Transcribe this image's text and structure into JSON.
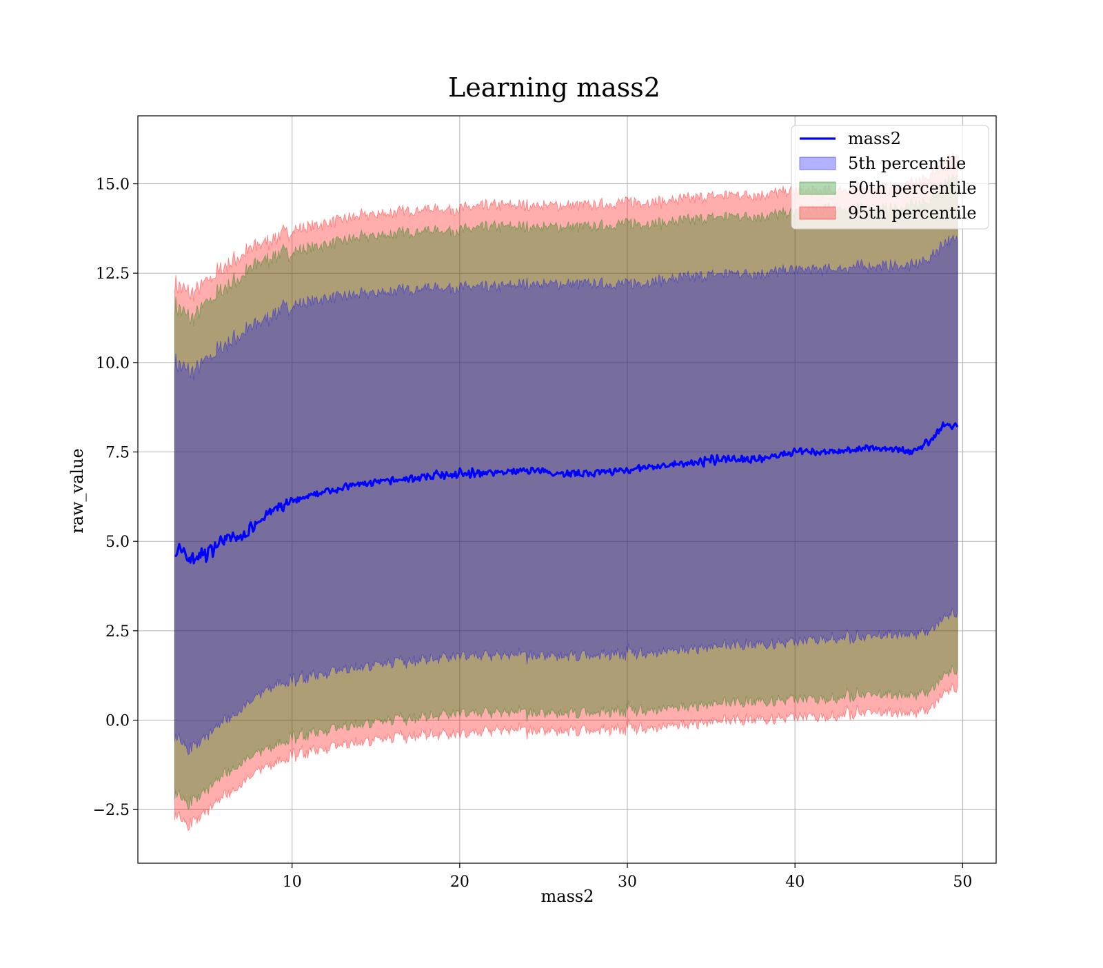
{
  "chart_data": {
    "type": "area",
    "title": "Learning mass2",
    "xlabel": "mass2",
    "ylabel": "raw_value",
    "xlim": [
      0.8,
      52
    ],
    "ylim": [
      -4,
      16.9
    ],
    "xticks": [
      10,
      20,
      30,
      40,
      50
    ],
    "yticks": [
      -2.5,
      0.0,
      2.5,
      5.0,
      7.5,
      10.0,
      12.5,
      15.0
    ],
    "ytick_labels": [
      "−2.5",
      "0.0",
      "2.5",
      "5.0",
      "7.5",
      "10.0",
      "12.5",
      "15.0"
    ],
    "grid": true,
    "legend_position": "top-right",
    "x": [
      3.0,
      4.0,
      5.0,
      6.0,
      7.0,
      8.0,
      9.0,
      10.0,
      12.0,
      14.0,
      16.0,
      18.0,
      20.0,
      22.0,
      24.0,
      26.0,
      28.0,
      30.0,
      32.0,
      34.0,
      36.0,
      38.0,
      40.0,
      42.0,
      44.0,
      46.0,
      47.0,
      48.0,
      49.0,
      49.7
    ],
    "series": [
      {
        "name": "mass2",
        "kind": "line",
        "color": "#0000ff",
        "values": [
          4.8,
          4.5,
          4.7,
          5.1,
          5.1,
          5.6,
          5.9,
          6.1,
          6.4,
          6.6,
          6.7,
          6.8,
          6.9,
          6.9,
          7.0,
          6.9,
          6.9,
          7.0,
          7.1,
          7.2,
          7.3,
          7.3,
          7.5,
          7.5,
          7.6,
          7.6,
          7.5,
          7.8,
          8.3,
          8.2
        ]
      },
      {
        "name": "5th percentile",
        "kind": "band",
        "color": "#0000ff",
        "lower": [
          -0.4,
          -0.8,
          -0.4,
          0.0,
          0.3,
          0.7,
          1.0,
          1.1,
          1.3,
          1.5,
          1.6,
          1.7,
          1.8,
          1.8,
          1.8,
          1.8,
          1.8,
          1.9,
          1.9,
          2.0,
          2.1,
          2.1,
          2.2,
          2.3,
          2.3,
          2.4,
          2.4,
          2.5,
          2.9,
          3.0
        ],
        "upper": [
          10.0,
          9.7,
          10.1,
          10.5,
          10.8,
          11.1,
          11.4,
          11.6,
          11.8,
          11.9,
          12.0,
          12.1,
          12.1,
          12.1,
          12.2,
          12.2,
          12.2,
          12.2,
          12.3,
          12.4,
          12.5,
          12.5,
          12.6,
          12.6,
          12.7,
          12.7,
          12.7,
          12.9,
          13.4,
          13.4
        ]
      },
      {
        "name": "50th percentile",
        "kind": "band",
        "color": "#008000",
        "lower": [
          -2.0,
          -2.3,
          -1.9,
          -1.5,
          -1.2,
          -0.9,
          -0.7,
          -0.5,
          -0.3,
          -0.1,
          0.0,
          0.1,
          0.2,
          0.2,
          0.2,
          0.2,
          0.2,
          0.3,
          0.3,
          0.4,
          0.5,
          0.5,
          0.6,
          0.6,
          0.7,
          0.7,
          0.7,
          0.8,
          1.3,
          1.4
        ],
        "upper": [
          11.6,
          11.2,
          11.7,
          12.1,
          12.4,
          12.8,
          13.0,
          13.1,
          13.3,
          13.5,
          13.6,
          13.7,
          13.7,
          13.8,
          13.8,
          13.8,
          13.8,
          13.9,
          13.9,
          14.0,
          14.1,
          14.1,
          14.2,
          14.3,
          14.3,
          14.3,
          14.4,
          14.5,
          15.1,
          15.1
        ]
      },
      {
        "name": "95th percentile",
        "kind": "band",
        "color": "#ff0000",
        "lower": [
          -2.6,
          -2.9,
          -2.5,
          -2.1,
          -1.8,
          -1.4,
          -1.2,
          -1.0,
          -0.8,
          -0.6,
          -0.5,
          -0.4,
          -0.4,
          -0.3,
          -0.3,
          -0.3,
          -0.3,
          -0.2,
          -0.2,
          -0.1,
          0.0,
          0.0,
          0.1,
          0.1,
          0.2,
          0.2,
          0.2,
          0.3,
          0.8,
          0.9
        ],
        "upper": [
          12.2,
          11.9,
          12.3,
          12.7,
          13.0,
          13.3,
          13.5,
          13.7,
          13.9,
          14.1,
          14.2,
          14.3,
          14.3,
          14.4,
          14.4,
          14.4,
          14.4,
          14.5,
          14.5,
          14.6,
          14.7,
          14.7,
          14.8,
          14.8,
          14.9,
          14.9,
          15.0,
          15.2,
          15.7,
          15.7
        ]
      }
    ]
  }
}
